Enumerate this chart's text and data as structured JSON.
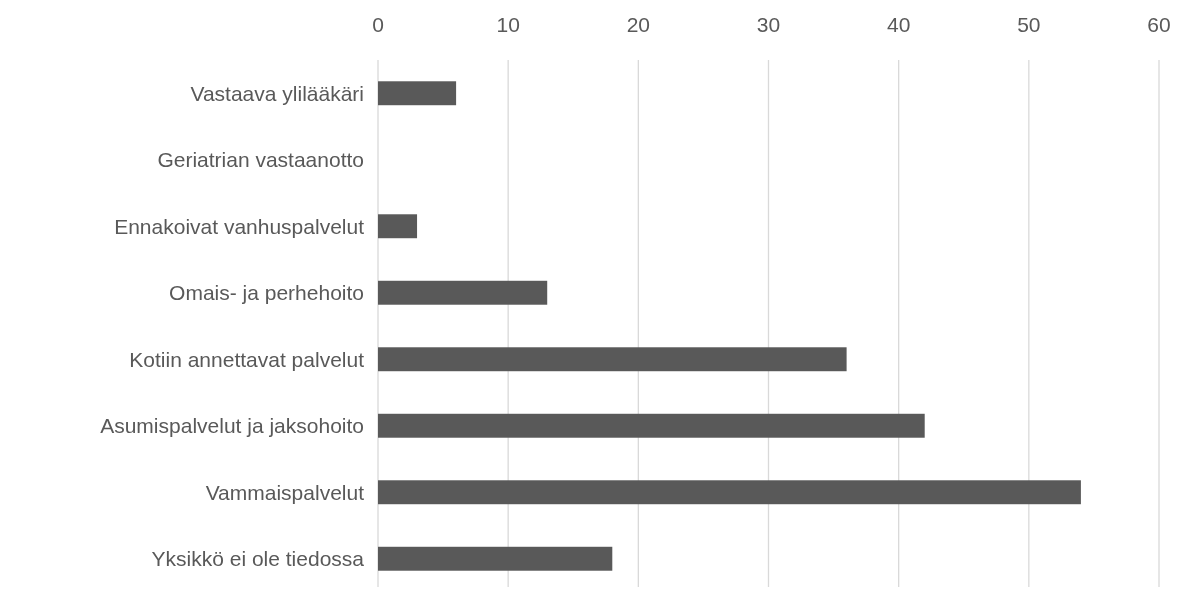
{
  "chart_data": {
    "type": "bar",
    "orientation": "horizontal",
    "categories": [
      "Vastaava ylilääkäri",
      "Geriatrian vastaanotto",
      "Ennakoivat vanhuspalvelut",
      "Omais- ja perhehoito",
      "Kotiin annettavat palvelut",
      "Asumispalvelut ja jaksohoito",
      "Vammaispalvelut",
      "Yksikkö ei ole tiedossa"
    ],
    "series": [
      {
        "color": "#595959",
        "values": [
          6,
          0,
          3,
          13,
          36,
          42,
          54,
          18
        ]
      }
    ],
    "xlim": [
      0,
      60
    ],
    "xticks": [
      0,
      10,
      20,
      30,
      40,
      50,
      60
    ],
    "grid": "x"
  }
}
